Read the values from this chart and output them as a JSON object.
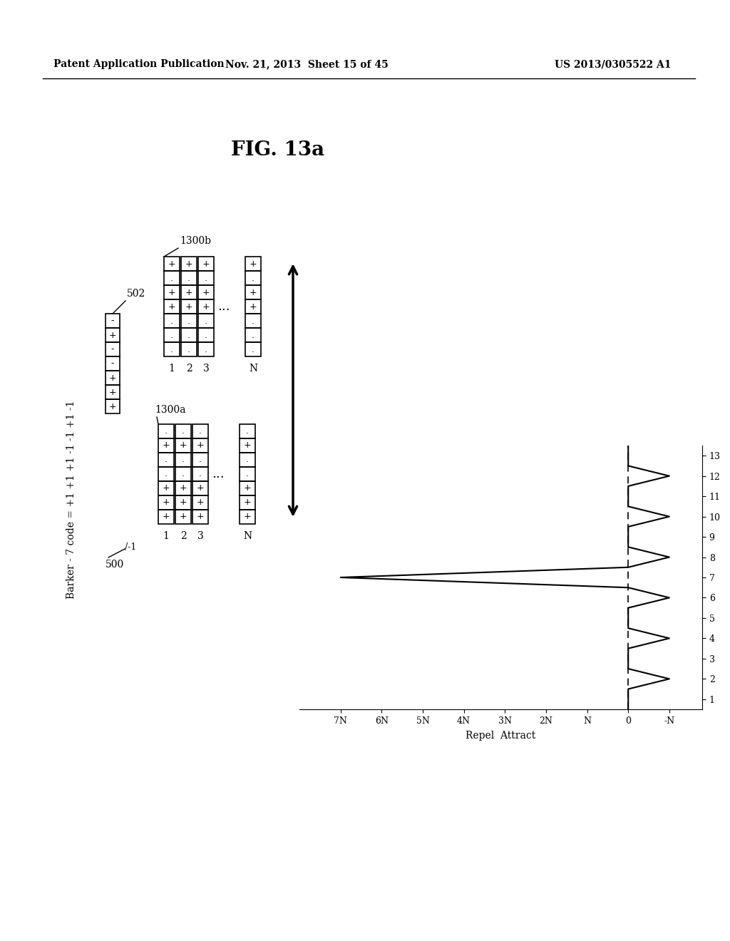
{
  "header_left": "Patent Application Publication",
  "header_mid": "Nov. 21, 2013  Sheet 15 of 45",
  "header_right": "US 2013/0305522 A1",
  "fig_label": "FIG. 13a",
  "barker_code": "Barker - 7 code = +1 +1 +1 -1 -1 +1 -1",
  "label_500": "500",
  "label_502": "502",
  "label_1300a": "1300a",
  "label_1300b": "1300b",
  "background_color": "#ffffff",
  "barker_signs": [
    "-",
    "+",
    "-",
    "-",
    "+",
    "+",
    "+"
  ],
  "barker_b_signs": [
    "+",
    ".",
    "+",
    "+",
    ".",
    ".",
    "."
  ],
  "ac_values": [
    0,
    -1,
    0,
    -1,
    0,
    -1,
    7,
    -1,
    0,
    -1,
    0,
    -1,
    0
  ],
  "y_tick_labels": [
    "-N",
    "0",
    "N",
    "2N",
    "3N",
    "4N",
    "5N",
    "6N",
    "7N"
  ],
  "y_tick_vals": [
    -1,
    0,
    1,
    2,
    3,
    4,
    5,
    6,
    7
  ]
}
